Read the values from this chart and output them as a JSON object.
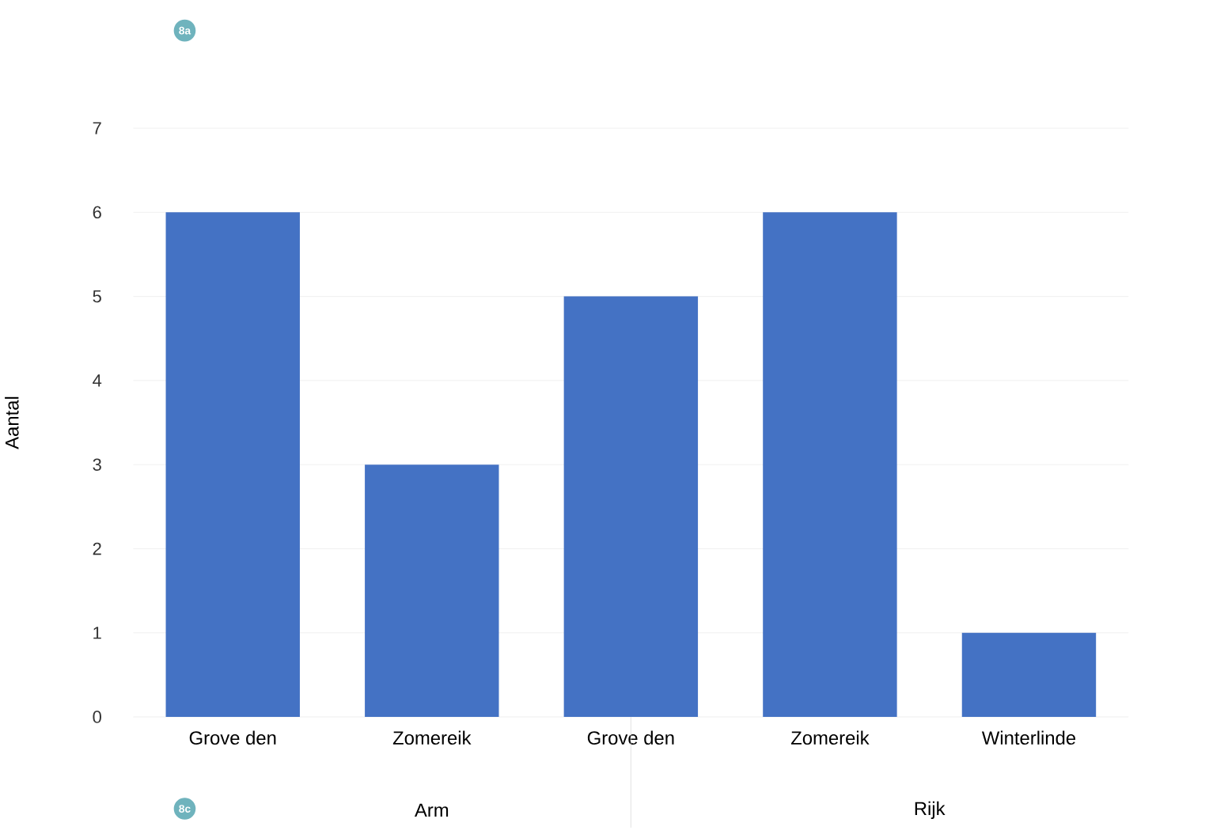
{
  "chart_data": {
    "type": "bar",
    "ylabel": "Aantal",
    "categories": [
      "Grove den",
      "Zomereik",
      "Grove den",
      "Zomereik",
      "Winterlinde"
    ],
    "values": [
      6,
      3,
      5,
      6,
      1
    ],
    "color": "#4472c4",
    "ylim": [
      0,
      7
    ],
    "yticks": [
      0,
      1,
      2,
      3,
      4,
      5,
      6,
      7
    ],
    "grid": "y",
    "annotations": [
      "8a",
      "8c",
      "Arm",
      "Rijk"
    ]
  }
}
